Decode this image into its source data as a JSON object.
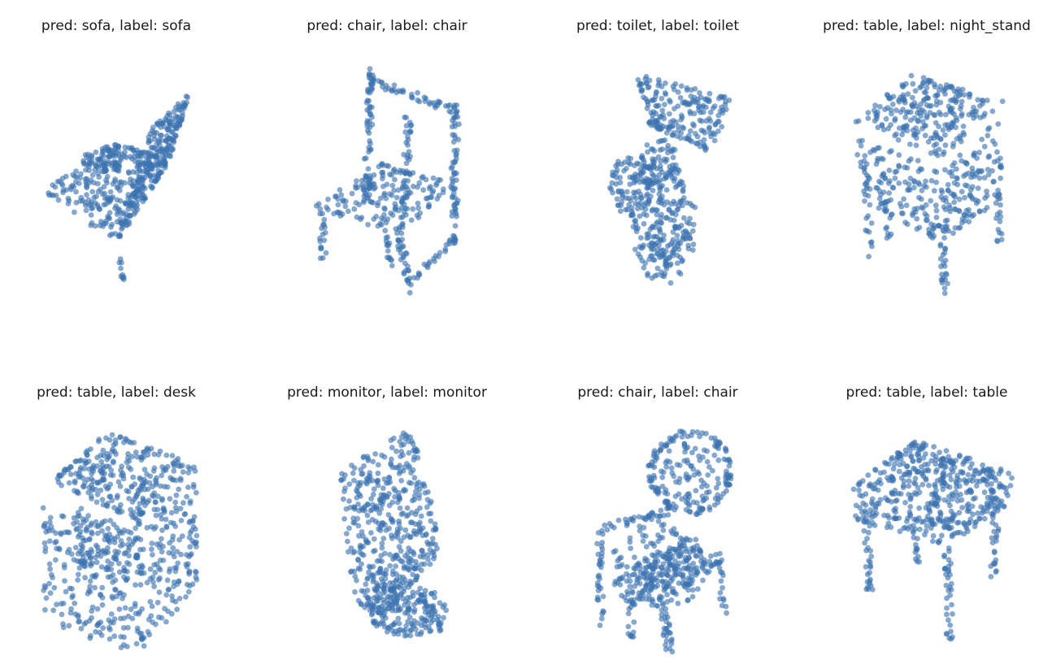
{
  "figure": {
    "point_color": "#3b73b0",
    "point_opacity": 0.62
  },
  "chart_data": [
    {
      "type": "scatter",
      "title": "pred: sofa, label: sofa",
      "pred": "sofa",
      "label": "sofa",
      "axes_visible": false,
      "grid": false
    },
    {
      "type": "scatter",
      "title": "pred: chair, label: chair",
      "pred": "chair",
      "label": "chair",
      "axes_visible": false,
      "grid": false
    },
    {
      "type": "scatter",
      "title": "pred: toilet, label: toilet",
      "pred": "toilet",
      "label": "toilet",
      "axes_visible": false,
      "grid": false
    },
    {
      "type": "scatter",
      "title": "pred: table, label: night_stand",
      "pred": "table",
      "label": "night_stand",
      "axes_visible": false,
      "grid": false
    },
    {
      "type": "scatter",
      "title": "pred: table, label: desk",
      "pred": "table",
      "label": "desk",
      "axes_visible": false,
      "grid": false
    },
    {
      "type": "scatter",
      "title": "pred: monitor, label: monitor",
      "pred": "monitor",
      "label": "monitor",
      "axes_visible": false,
      "grid": false
    },
    {
      "type": "scatter",
      "title": "pred: chair, label: chair",
      "pred": "chair",
      "label": "chair",
      "axes_visible": false,
      "grid": false
    },
    {
      "type": "scatter",
      "title": "pred: table, label: table",
      "pred": "table",
      "label": "table",
      "axes_visible": false,
      "grid": false
    }
  ]
}
